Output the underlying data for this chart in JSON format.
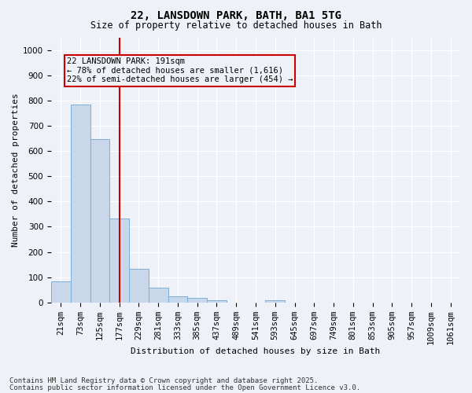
{
  "title1": "22, LANSDOWN PARK, BATH, BA1 5TG",
  "title2": "Size of property relative to detached houses in Bath",
  "xlabel": "Distribution of detached houses by size in Bath",
  "ylabel": "Number of detached properties",
  "bar_labels": [
    "21sqm",
    "73sqm",
    "125sqm",
    "177sqm",
    "229sqm",
    "281sqm",
    "333sqm",
    "385sqm",
    "437sqm",
    "489sqm",
    "541sqm",
    "593sqm",
    "645sqm",
    "697sqm",
    "749sqm",
    "801sqm",
    "853sqm",
    "905sqm",
    "957sqm",
    "1009sqm",
    "1061sqm"
  ],
  "bar_values": [
    83,
    783,
    648,
    333,
    133,
    58,
    23,
    18,
    10,
    0,
    0,
    8,
    0,
    0,
    0,
    0,
    0,
    0,
    0,
    0,
    0
  ],
  "bar_color": "#c8d8ea",
  "bar_edge_color": "#7bafd4",
  "annotation_title": "22 LANSDOWN PARK: 191sqm",
  "annotation_line1": "← 78% of detached houses are smaller (1,616)",
  "annotation_line2": "22% of semi-detached houses are larger (454) →",
  "vline_position": 3.0,
  "vline_color": "#cc0000",
  "annotation_box_color": "#cc0000",
  "ylim": [
    0,
    1050
  ],
  "yticks": [
    0,
    100,
    200,
    300,
    400,
    500,
    600,
    700,
    800,
    900,
    1000
  ],
  "background_color": "#eef2f8",
  "grid_color": "#ffffff",
  "footer1": "Contains HM Land Registry data © Crown copyright and database right 2025.",
  "footer2": "Contains public sector information licensed under the Open Government Licence v3.0.",
  "footer_fontsize": 6.5,
  "title1_fontsize": 10,
  "title2_fontsize": 8.5,
  "axis_label_fontsize": 8,
  "tick_fontsize": 7.5,
  "annotation_fontsize": 7.5
}
